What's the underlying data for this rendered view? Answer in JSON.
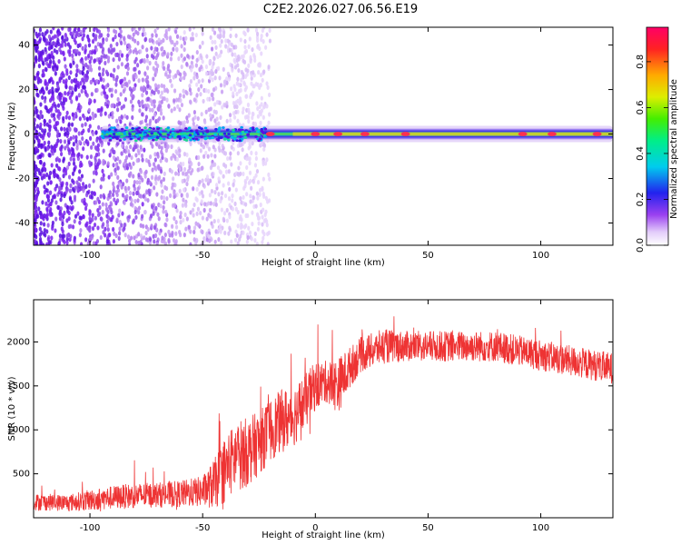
{
  "figure": {
    "title": "C2E2.2026.027.06.56.E19"
  },
  "chart_data": [
    {
      "type": "heatmap",
      "title": "C2E2.2026.027.06.56.E19",
      "xlabel": "Height of straight line (km)",
      "ylabel": "Frequency (Hz)",
      "xlim": [
        -125,
        132
      ],
      "ylim": [
        -50,
        48
      ],
      "xticks": [
        -100,
        -50,
        0,
        50,
        100
      ],
      "yticks": [
        -40,
        -20,
        0,
        20,
        40
      ],
      "colorbar": {
        "label": "Normalized spectral amplitude",
        "range": [
          0,
          0.95
        ],
        "ticks": [
          0.0,
          0.2,
          0.4,
          0.6,
          0.8
        ]
      },
      "grid": false,
      "description_values": {
        "noise_region_x": [
          -125,
          -20
        ],
        "echo_band_frequency": 0,
        "echo_band_start_x": -95,
        "peak_amplitude_x": [
          -20,
          0,
          10,
          22,
          40,
          92,
          105,
          125
        ]
      }
    },
    {
      "type": "line",
      "xlabel": "Height of straight line (km)",
      "ylabel": "SNR (10 * v/v)",
      "xlim": [
        -125,
        132
      ],
      "ylim": [
        0,
        2480
      ],
      "xticks": [
        -100,
        -50,
        0,
        50,
        100
      ],
      "yticks": [
        500,
        1000,
        1500,
        2000
      ],
      "grid": false,
      "series": [
        {
          "name": "SNR",
          "color": "#ee3333",
          "x": [
            -125,
            -110,
            -100,
            -90,
            -80,
            -70,
            -60,
            -50,
            -45,
            -40,
            -35,
            -30,
            -25,
            -20,
            -15,
            -10,
            -5,
            0,
            5,
            10,
            15,
            20,
            25,
            30,
            40,
            50,
            60,
            70,
            80,
            90,
            100,
            110,
            120,
            132
          ],
          "mean": [
            180,
            170,
            200,
            230,
            250,
            260,
            270,
            300,
            380,
            550,
            700,
            750,
            850,
            1000,
            1100,
            1150,
            1300,
            1500,
            1550,
            1500,
            1700,
            1850,
            1900,
            1950,
            1950,
            1950,
            1950,
            1950,
            1950,
            1900,
            1850,
            1800,
            1750,
            1700
          ],
          "spread": [
            120,
            120,
            150,
            170,
            180,
            180,
            190,
            220,
            350,
            480,
            500,
            500,
            450,
            450,
            450,
            450,
            400,
            350,
            300,
            400,
            300,
            250,
            250,
            250,
            220,
            220,
            220,
            220,
            220,
            220,
            220,
            220,
            220,
            220
          ]
        }
      ]
    }
  ]
}
